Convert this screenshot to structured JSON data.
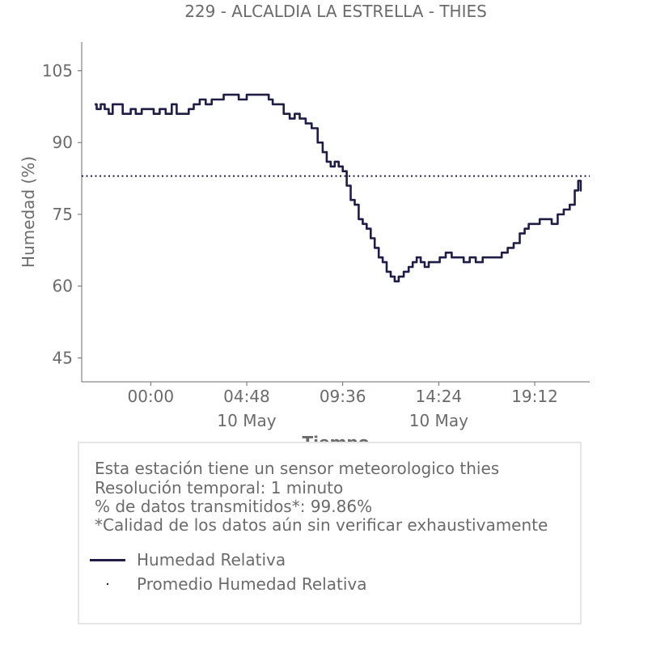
{
  "chart_data": {
    "type": "line",
    "title": "229 - ALCALDIA LA ESTRELLA - THIES",
    "xlabel": "Tiempo",
    "ylabel": "Humedad (%)",
    "ylim": [
      40,
      111
    ],
    "xlim_hours": [
      -3.45,
      21.95
    ],
    "yticks": [
      45,
      60,
      75,
      90,
      105
    ],
    "xticks": [
      {
        "hour": 0.0,
        "label": "00:00",
        "sublabel": ""
      },
      {
        "hour": 4.8,
        "label": "04:48",
        "sublabel": "10 May"
      },
      {
        "hour": 9.6,
        "label": "09:36",
        "sublabel": ""
      },
      {
        "hour": 14.4,
        "label": "14:24",
        "sublabel": "10 May"
      },
      {
        "hour": 19.2,
        "label": "19:12",
        "sublabel": ""
      }
    ],
    "grid": false,
    "series": [
      {
        "name": "Humedad Relativa",
        "color": "#1f1d44",
        "style": "solid",
        "points": [
          [
            -2.8,
            98
          ],
          [
            -2.6,
            97
          ],
          [
            -2.4,
            98
          ],
          [
            -2.2,
            97
          ],
          [
            -2.0,
            96
          ],
          [
            -1.8,
            98
          ],
          [
            -1.5,
            98
          ],
          [
            -1.3,
            96
          ],
          [
            -1.1,
            96
          ],
          [
            -0.9,
            97
          ],
          [
            -0.6,
            96
          ],
          [
            -0.3,
            97
          ],
          [
            0.0,
            97
          ],
          [
            0.3,
            96
          ],
          [
            0.6,
            97
          ],
          [
            0.9,
            96
          ],
          [
            1.2,
            98
          ],
          [
            1.4,
            96
          ],
          [
            1.8,
            96
          ],
          [
            2.0,
            97
          ],
          [
            2.3,
            98
          ],
          [
            2.6,
            99
          ],
          [
            2.9,
            98
          ],
          [
            3.2,
            99
          ],
          [
            3.5,
            99
          ],
          [
            3.8,
            100
          ],
          [
            4.2,
            100
          ],
          [
            4.6,
            99
          ],
          [
            5.0,
            100
          ],
          [
            5.4,
            100
          ],
          [
            5.8,
            100
          ],
          [
            6.0,
            99
          ],
          [
            6.2,
            98
          ],
          [
            6.5,
            98
          ],
          [
            6.8,
            96
          ],
          [
            7.1,
            95
          ],
          [
            7.3,
            96
          ],
          [
            7.6,
            95
          ],
          [
            7.9,
            94
          ],
          [
            8.2,
            93
          ],
          [
            8.5,
            90
          ],
          [
            8.7,
            88
          ],
          [
            8.9,
            86
          ],
          [
            9.1,
            85
          ],
          [
            9.3,
            86
          ],
          [
            9.5,
            85
          ],
          [
            9.7,
            84
          ],
          [
            9.9,
            81
          ],
          [
            10.1,
            78
          ],
          [
            10.3,
            77
          ],
          [
            10.5,
            74
          ],
          [
            10.7,
            73
          ],
          [
            10.9,
            72
          ],
          [
            11.1,
            70
          ],
          [
            11.3,
            68
          ],
          [
            11.5,
            66
          ],
          [
            11.7,
            65
          ],
          [
            11.9,
            63
          ],
          [
            12.1,
            62
          ],
          [
            12.3,
            61
          ],
          [
            12.5,
            62
          ],
          [
            12.8,
            63
          ],
          [
            13.0,
            64
          ],
          [
            13.2,
            65
          ],
          [
            13.4,
            66
          ],
          [
            13.6,
            65
          ],
          [
            13.8,
            64
          ],
          [
            14.0,
            65
          ],
          [
            14.3,
            65
          ],
          [
            14.6,
            66
          ],
          [
            14.9,
            67
          ],
          [
            15.2,
            66
          ],
          [
            15.5,
            66
          ],
          [
            15.8,
            65
          ],
          [
            16.1,
            66
          ],
          [
            16.4,
            65
          ],
          [
            16.8,
            66
          ],
          [
            17.1,
            66
          ],
          [
            17.4,
            66
          ],
          [
            17.7,
            67
          ],
          [
            18.0,
            68
          ],
          [
            18.3,
            69
          ],
          [
            18.6,
            71
          ],
          [
            18.8,
            72
          ],
          [
            19.0,
            73
          ],
          [
            19.3,
            73
          ],
          [
            19.6,
            74
          ],
          [
            19.9,
            74
          ],
          [
            20.2,
            73
          ],
          [
            20.5,
            75
          ],
          [
            20.8,
            76
          ],
          [
            21.1,
            77
          ],
          [
            21.3,
            80
          ],
          [
            21.45,
            82
          ],
          [
            21.55,
            80
          ]
        ]
      },
      {
        "name": "Promedio Humedad Relativa",
        "color": "#1f1d44",
        "style": "dotted",
        "value": 83
      }
    ]
  },
  "info": {
    "lines": [
      "Esta estación tiene un sensor meteorologico thies",
      "Resolución temporal: 1 minuto",
      "% de datos transmitidos*: 99.86%",
      "*Calidad de los datos aún sin verificar exhaustivamente"
    ],
    "legend": [
      {
        "label": "Humedad Relativa",
        "marker": "line"
      },
      {
        "label": "Promedio Humedad Relativa",
        "marker": "dot"
      }
    ]
  }
}
